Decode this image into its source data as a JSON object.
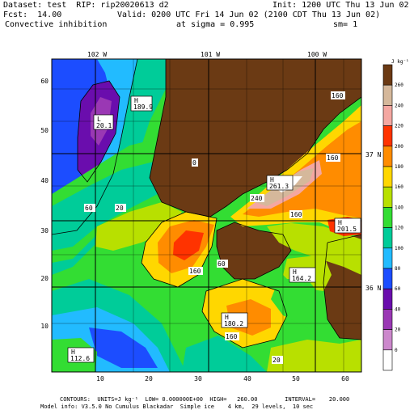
{
  "header": {
    "dataset_line": "Dataset: test  RIP: rip20020613 d2",
    "init_line": "Init: 1200 UTC Thu 13 Jun 02",
    "fcst_line": "Fcst:  14.00",
    "valid_line": "Valid: 0200 UTC Fri 14 Jun 02 (2100 CDT Thu 13 Jun 02)",
    "field_name": "Convective inhibition",
    "sigma_line": "at sigma = 0.995",
    "sm_line": "sm= 1"
  },
  "map": {
    "lon_labels": [
      "102 W",
      "101 W",
      "100 W"
    ],
    "lat_labels": [
      "37 N",
      "36 N"
    ],
    "x_ticks": [
      "10",
      "20",
      "30",
      "40",
      "50",
      "60"
    ],
    "y_ticks": [
      "10",
      "20",
      "30",
      "40",
      "50",
      "60"
    ],
    "x_range": [
      1,
      63
    ],
    "y_range": [
      1,
      64
    ],
    "highs": [
      {
        "mark": "H",
        "value": "189.9"
      },
      {
        "mark": "H",
        "value": "261.3"
      },
      {
        "mark": "H",
        "value": "201.5"
      },
      {
        "mark": "H",
        "value": "164.2"
      },
      {
        "mark": "H",
        "value": "180.2"
      },
      {
        "mark": "H",
        "value": "112.6"
      }
    ],
    "lows": [
      {
        "mark": "L",
        "value": "20.1"
      }
    ],
    "contour_labels": [
      "160",
      "160",
      "160",
      "160",
      "0",
      "240",
      "160",
      "60",
      "20",
      "60",
      "20"
    ]
  },
  "legend": {
    "units": "J kg⁻¹",
    "levels": [
      "260",
      "240",
      "220",
      "200",
      "180",
      "160",
      "140",
      "120",
      "100",
      "80",
      "60",
      "40",
      "20",
      "0"
    ],
    "colors": [
      "#6b3a14",
      "#d5b89b",
      "#f4a7a1",
      "#ff3300",
      "#ff8c00",
      "#ffd700",
      "#b8e000",
      "#33dd33",
      "#00cc99",
      "#22bbff",
      "#1c4dff",
      "#6a0dad",
      "#9a38b4",
      "#cc88cc",
      "#ffffff"
    ]
  },
  "footer": {
    "contours_line": "CONTOURS:  UNITS=J kg⁻¹  LOW= 0.000000E+00  HIGH=   260.00        INTERVAL=    20.000",
    "model_line": "Model info: V3.5.0 No Cumulus Blackadar  Simple ice    4 km,  29 levels,  10 sec"
  }
}
